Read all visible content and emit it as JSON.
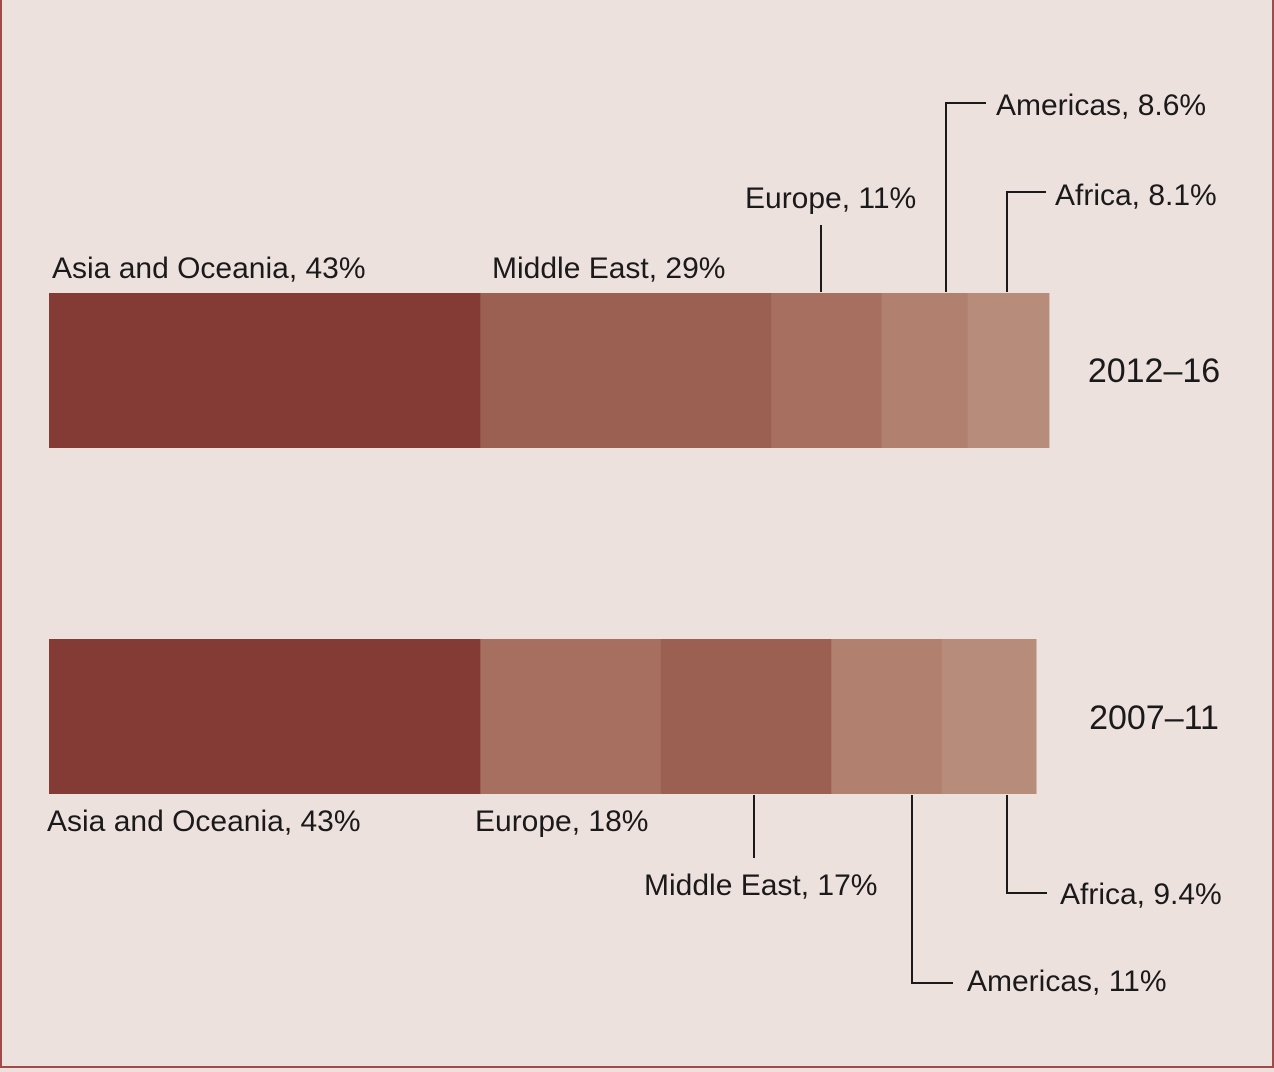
{
  "chart_data": {
    "type": "bar",
    "orientation": "horizontal",
    "stacked": true,
    "unit": "%",
    "title": "",
    "xlabel": "",
    "ylabel": "",
    "grid": false,
    "legend": "none",
    "rows": [
      {
        "period": "2012–16",
        "segments": [
          {
            "region": "Asia and Oceania",
            "value": 43,
            "label": "Asia and Oceania, 43%",
            "color": "#843a35"
          },
          {
            "region": "Middle East",
            "value": 29,
            "label": "Middle East, 29%",
            "color": "#9b6052"
          },
          {
            "region": "Europe",
            "value": 11,
            "label": "Europe, 11%",
            "color": "#a66f60"
          },
          {
            "region": "Americas",
            "value": 8.6,
            "label": "Americas, 8.6%",
            "color": "#b2806f"
          },
          {
            "region": "Africa",
            "value": 8.1,
            "label": "Africa, 8.1%",
            "color": "#b78c7b"
          }
        ]
      },
      {
        "period": "2007–11",
        "segments": [
          {
            "region": "Asia and Oceania",
            "value": 43,
            "label": "Asia and Oceania, 43%",
            "color": "#843a35"
          },
          {
            "region": "Europe",
            "value": 18,
            "label": "Europe, 18%",
            "color": "#a66f60"
          },
          {
            "region": "Middle East",
            "value": 17,
            "label": "Middle East, 17%",
            "color": "#9b6052"
          },
          {
            "region": "Americas",
            "value": 11,
            "label": "Americas, 11%",
            "color": "#b2806f"
          },
          {
            "region": "Africa",
            "value": 9.4,
            "label": "Africa, 9.4%",
            "color": "#b78c7b"
          }
        ]
      }
    ]
  },
  "colors": {
    "background": "#ede1de",
    "border": "#a14a4a",
    "text": "#1a1a1a"
  }
}
